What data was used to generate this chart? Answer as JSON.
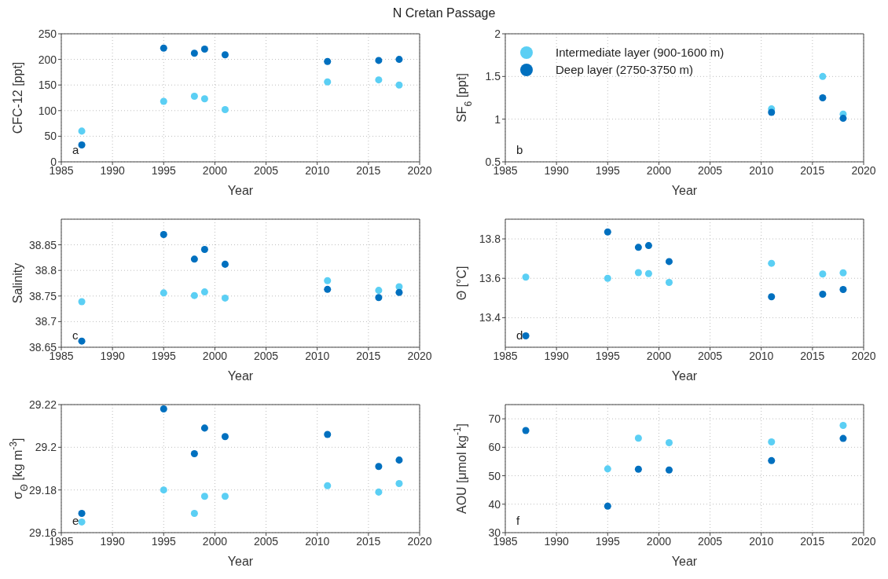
{
  "chart_data": [
    {
      "type": "scatter",
      "title": "N Cretan Passage",
      "xlabel": "Year",
      "ylabel": "CFC-12 [ppt]",
      "xlim": [
        1985,
        2020
      ],
      "xticks": [
        1985,
        1990,
        1995,
        2000,
        2005,
        2010,
        2015,
        2020
      ],
      "ylim": [
        0,
        250
      ],
      "yticks": [
        0,
        50,
        100,
        150,
        200,
        250
      ],
      "grid": true,
      "marker": "circle",
      "annotations": [
        "a"
      ],
      "series": [
        {
          "color": "#5bcff4",
          "x": [
            1987,
            1995,
            1998,
            1999,
            2001,
            2011,
            2016,
            2018
          ],
          "values": [
            60,
            118,
            128,
            123,
            102,
            156,
            160,
            150
          ]
        },
        {
          "color": "#0070bf",
          "x": [
            1987,
            1995,
            1998,
            1999,
            2001,
            2011,
            2016,
            2018
          ],
          "values": [
            33,
            222,
            212,
            220,
            209,
            196,
            198,
            200
          ]
        }
      ]
    },
    {
      "type": "scatter",
      "xlabel": "Year",
      "ylabel": "SF$_{6}$ [ppt]",
      "xlim": [
        1985,
        2020
      ],
      "xticks": [
        1985,
        1990,
        1995,
        2000,
        2005,
        2010,
        2015,
        2020
      ],
      "ylim": [
        0.5,
        2
      ],
      "yticks": [
        0.5,
        1,
        1.5,
        2
      ],
      "grid": true,
      "marker": "circle",
      "legend": "top left",
      "annotations": [
        "b"
      ],
      "series": [
        {
          "name": "Intermediate layer (900-1600 m)",
          "color": "#5bcff4",
          "x": [
            2011,
            2016,
            2018
          ],
          "values": [
            1.12,
            1.5,
            1.06
          ]
        },
        {
          "name": "Deep layer (2750-3750 m)",
          "color": "#0070bf",
          "x": [
            2011,
            2016,
            2018
          ],
          "values": [
            1.08,
            1.25,
            1.01
          ]
        }
      ]
    },
    {
      "type": "scatter",
      "xlabel": "Year",
      "ylabel": "Salinity",
      "xlim": [
        1985,
        2020
      ],
      "xticks": [
        1985,
        1990,
        1995,
        2000,
        2005,
        2010,
        2015,
        2020
      ],
      "ylim": [
        38.65,
        38.9
      ],
      "yticks": [
        38.65,
        38.7,
        38.75,
        38.8,
        38.85
      ],
      "grid": true,
      "marker": "circle",
      "annotations": [
        "c"
      ],
      "series": [
        {
          "color": "#5bcff4",
          "x": [
            1987,
            1995,
            1998,
            1999,
            2001,
            2011,
            2016,
            2018
          ],
          "values": [
            38.739,
            38.756,
            38.751,
            38.758,
            38.746,
            38.78,
            38.761,
            38.768
          ]
        },
        {
          "color": "#0070bf",
          "x": [
            1987,
            1995,
            1998,
            1999,
            2001,
            2011,
            2016,
            2018
          ],
          "values": [
            38.662,
            38.87,
            38.822,
            38.841,
            38.812,
            38.763,
            38.747,
            38.757
          ]
        }
      ]
    },
    {
      "type": "scatter",
      "xlabel": "Year",
      "ylabel": "Θ [°C]",
      "xlim": [
        1985,
        2020
      ],
      "xticks": [
        1985,
        1990,
        1995,
        2000,
        2005,
        2010,
        2015,
        2020
      ],
      "ylim": [
        13.25,
        13.9
      ],
      "yticks": [
        13.4,
        13.6,
        13.8
      ],
      "grid": true,
      "marker": "circle",
      "annotations": [
        "d"
      ],
      "series": [
        {
          "color": "#5bcff4",
          "x": [
            1987,
            1995,
            1998,
            1999,
            2001,
            2011,
            2016,
            2018
          ],
          "values": [
            13.606,
            13.6,
            13.629,
            13.624,
            13.579,
            13.676,
            13.622,
            13.628
          ]
        },
        {
          "color": "#0070bf",
          "x": [
            1987,
            1995,
            1998,
            1999,
            2001,
            2011,
            2016,
            2018
          ],
          "values": [
            13.308,
            13.835,
            13.757,
            13.766,
            13.685,
            13.506,
            13.519,
            13.543
          ]
        }
      ]
    },
    {
      "type": "scatter",
      "xlabel": "Year",
      "ylabel": "σ$_{Θ}$ [kg m$^{-3}$]",
      "xlim": [
        1985,
        2020
      ],
      "xticks": [
        1985,
        1990,
        1995,
        2000,
        2005,
        2010,
        2015,
        2020
      ],
      "ylim": [
        29.16,
        29.22
      ],
      "yticks": [
        29.16,
        29.18,
        29.2,
        29.22
      ],
      "grid": true,
      "marker": "circle",
      "annotations": [
        "e"
      ],
      "series": [
        {
          "color": "#5bcff4",
          "x": [
            1987,
            1995,
            1998,
            1999,
            2001,
            2011,
            2016,
            2018
          ],
          "values": [
            29.165,
            29.18,
            29.169,
            29.177,
            29.177,
            29.182,
            29.179,
            29.183
          ]
        },
        {
          "color": "#0070bf",
          "x": [
            1987,
            1995,
            1998,
            1999,
            2001,
            2011,
            2016,
            2018
          ],
          "values": [
            29.169,
            29.218,
            29.197,
            29.209,
            29.205,
            29.206,
            29.191,
            29.194
          ]
        }
      ]
    },
    {
      "type": "scatter",
      "xlabel": "Year",
      "ylabel": "AOU [μmol kg$^{-1}$]",
      "xlim": [
        1985,
        2020
      ],
      "xticks": [
        1985,
        1990,
        1995,
        2000,
        2005,
        2010,
        2015,
        2020
      ],
      "ylim": [
        30,
        75
      ],
      "yticks": [
        30,
        40,
        50,
        60,
        70
      ],
      "grid": true,
      "marker": "circle",
      "annotations": [
        "f"
      ],
      "series": [
        {
          "color": "#5bcff4",
          "x": [
            1995,
            1998,
            2001,
            2011,
            2018
          ],
          "values": [
            52.4,
            63.2,
            61.6,
            61.9,
            67.7
          ]
        },
        {
          "color": "#0070bf",
          "x": [
            1987,
            1995,
            1998,
            2001,
            2011,
            2018
          ],
          "values": [
            65.9,
            39.3,
            52.3,
            52.0,
            55.3,
            63.1
          ]
        }
      ]
    }
  ]
}
